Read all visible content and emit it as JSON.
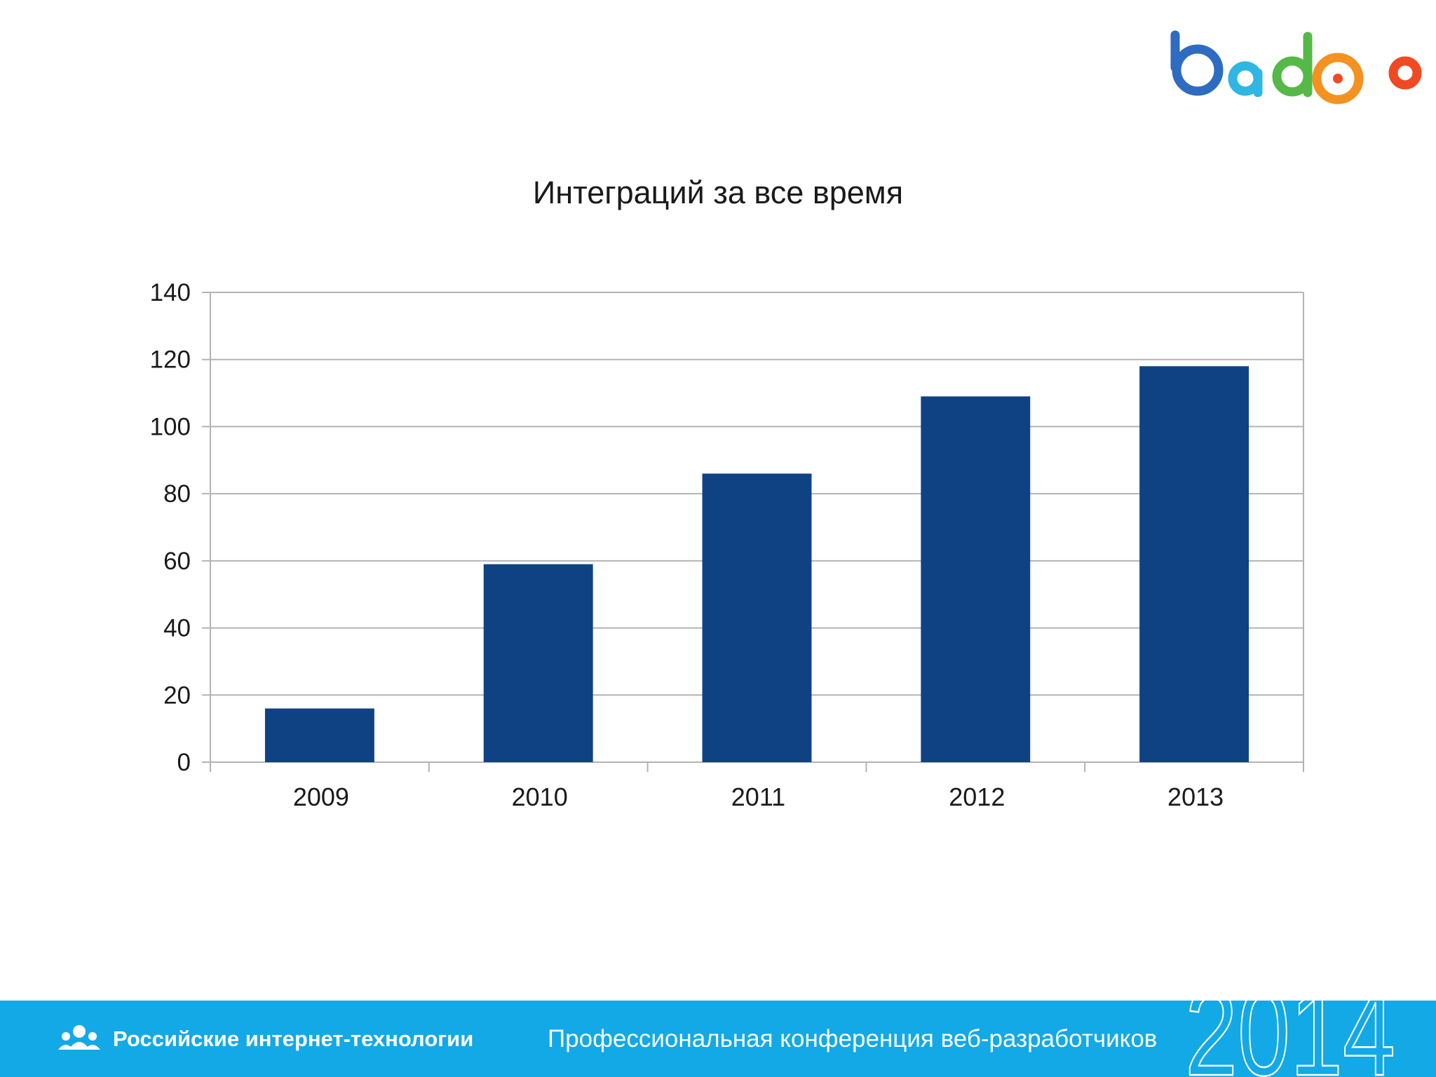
{
  "logo": {
    "text": "badoo"
  },
  "footer": {
    "org": "Российские интернет-технологии",
    "conference": "Профессиональная конференция веб-разработчиков",
    "year": "2014"
  },
  "colors": {
    "bar": "#0f4283",
    "footer_bg": "#12a9e6",
    "grid": "#b3b3b3",
    "logo_b": "#2d6cc0",
    "logo_a": "#2fb6e3",
    "logo_d": "#55b947",
    "logo_o1": "#f39221",
    "logo_o2": "#ef4a23"
  },
  "chart_data": {
    "type": "bar",
    "title": "Интеграций за все время",
    "categories": [
      "2009",
      "2010",
      "2011",
      "2012",
      "2013"
    ],
    "values": [
      16,
      59,
      86,
      109,
      118
    ],
    "xlabel": "",
    "ylabel": "",
    "ylim": [
      0,
      140
    ],
    "yticks": [
      0,
      20,
      40,
      60,
      80,
      100,
      120,
      140
    ],
    "grid": true,
    "legend": "none"
  }
}
